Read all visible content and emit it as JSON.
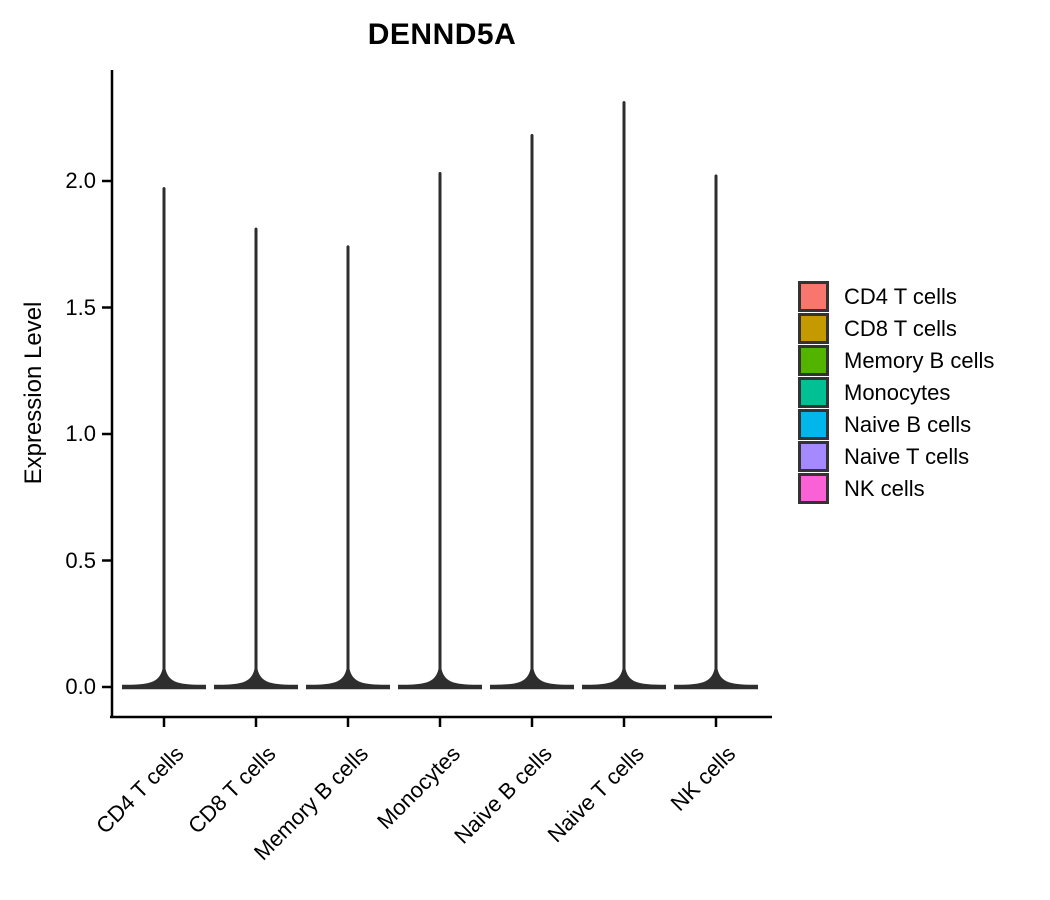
{
  "title": "DENND5A",
  "y_axis": {
    "label": "Expression Level",
    "tick_labels": [
      "0.0",
      "0.5",
      "1.0",
      "1.5",
      "2.0"
    ],
    "tick_values": [
      0.0,
      0.5,
      1.0,
      1.5,
      2.0
    ]
  },
  "x_axis": {
    "tick_labels": [
      "CD4 T cells",
      "CD8 T cells",
      "Memory B cells",
      "Monocytes",
      "Naive B cells",
      "Naive T cells",
      "NK cells"
    ]
  },
  "legend": {
    "items": [
      {
        "label": "CD4 T cells",
        "color": "#F8766D"
      },
      {
        "label": "CD8 T cells",
        "color": "#C49A00"
      },
      {
        "label": "Memory B cells",
        "color": "#53B400"
      },
      {
        "label": "Monocytes",
        "color": "#00C094"
      },
      {
        "label": "Naive B cells",
        "color": "#00B6EB"
      },
      {
        "label": "Naive T cells",
        "color": "#A58AFF"
      },
      {
        "label": "NK cells",
        "color": "#FB61D7"
      }
    ]
  },
  "chart_data": {
    "type": "violin",
    "title": "DENND5A",
    "xlabel": "",
    "ylabel": "Expression Level",
    "categories": [
      "CD4 T cells",
      "CD8 T cells",
      "Memory B cells",
      "Monocytes",
      "Naive B cells",
      "Naive T cells",
      "NK cells"
    ],
    "series": [
      {
        "name": "CD4 T cells",
        "color": "#F8766D",
        "max_expression": 1.98,
        "density_mode": 0.0
      },
      {
        "name": "CD8 T cells",
        "color": "#C49A00",
        "max_expression": 1.82,
        "density_mode": 0.0
      },
      {
        "name": "Memory B cells",
        "color": "#53B400",
        "max_expression": 1.75,
        "density_mode": 0.0
      },
      {
        "name": "Monocytes",
        "color": "#00C094",
        "max_expression": 2.04,
        "density_mode": 0.0
      },
      {
        "name": "Naive B cells",
        "color": "#00B6EB",
        "max_expression": 2.19,
        "density_mode": 0.0
      },
      {
        "name": "Naive T cells",
        "color": "#A58AFF",
        "max_expression": 2.32,
        "density_mode": 0.0
      },
      {
        "name": "NK cells",
        "color": "#FB61D7",
        "max_expression": 2.03,
        "density_mode": 0.0
      }
    ],
    "y_ticks": [
      0.0,
      0.5,
      1.0,
      1.5,
      2.0
    ],
    "ylim": [
      -0.12,
      2.44
    ],
    "grid": false,
    "legend_position": "right",
    "outline_color": "#2e2e2e",
    "shape_note": "each violin is a wide flat base at expression 0 with a thin density spike rising to its maximum"
  }
}
